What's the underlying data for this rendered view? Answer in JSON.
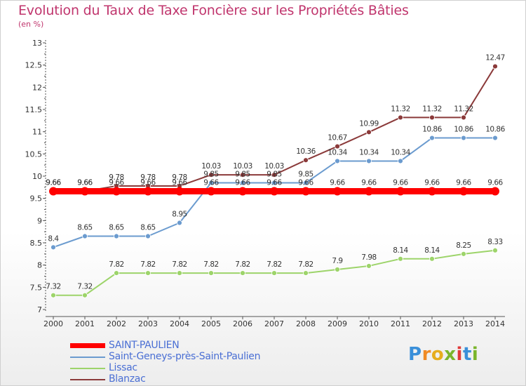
{
  "chart_data": {
    "type": "line",
    "title": "Evolution du Taux de Taxe Foncière sur les Propriétés Bâties",
    "subtitle": "(en %)",
    "xlabel": "",
    "ylabel": "(en %)",
    "ylim": [
      7,
      13
    ],
    "x": [
      "2000",
      "2001",
      "2002",
      "2003",
      "2004",
      "2005",
      "2006",
      "2007",
      "2008",
      "2009",
      "2010",
      "2011",
      "2012",
      "2013",
      "2014"
    ],
    "yticks": [
      "7",
      "7.5",
      "8",
      "8.5",
      "9",
      "9.5",
      "10",
      "10.5",
      "11",
      "11.5",
      "12",
      "12.5",
      "13"
    ],
    "series": [
      {
        "name": "SAINT-PAULIEN",
        "color": "#ff0000",
        "values": [
          9.66,
          9.66,
          9.66,
          9.66,
          9.66,
          9.66,
          9.66,
          9.66,
          9.66,
          9.66,
          9.66,
          9.66,
          9.66,
          9.66,
          9.66
        ],
        "labels": [
          "9.66",
          "9.66",
          "9.66",
          "9.66",
          "9.66",
          "9.66",
          "9.66",
          "9.66",
          "9.66",
          "9.66",
          "9.66",
          "9.66",
          "9.66",
          "9.66",
          "9.66"
        ]
      },
      {
        "name": "Saint-Geneys-près-Saint-Paulien",
        "color": "#6b9bcf",
        "values": [
          8.4,
          8.65,
          8.65,
          8.65,
          8.95,
          9.85,
          9.85,
          9.85,
          9.85,
          10.34,
          10.34,
          10.34,
          10.86,
          10.86,
          10.86
        ],
        "labels": [
          "8.4",
          "8.65",
          "8.65",
          "8.65",
          "8.95",
          "9.85",
          "9.85",
          "9.85",
          "9.85",
          "10.34",
          "10.34",
          "10.34",
          "10.86",
          "10.86",
          "10.86"
        ]
      },
      {
        "name": "Lissac",
        "color": "#9dd46a",
        "values": [
          7.32,
          7.32,
          7.82,
          7.82,
          7.82,
          7.82,
          7.82,
          7.82,
          7.82,
          7.9,
          7.98,
          8.14,
          8.14,
          8.25,
          8.33
        ],
        "labels": [
          "7.32",
          "7.32",
          "7.82",
          "7.82",
          "7.82",
          "7.82",
          "7.82",
          "7.82",
          "7.82",
          "7.9",
          "7.98",
          "8.14",
          "8.14",
          "8.25",
          "8.33"
        ]
      },
      {
        "name": "Blanzac",
        "color": "#8b3a3a",
        "values": [
          9.66,
          9.66,
          9.78,
          9.78,
          9.78,
          10.03,
          10.03,
          10.03,
          10.36,
          10.67,
          10.99,
          11.32,
          11.32,
          11.32,
          12.47
        ],
        "labels": [
          "9.66",
          "9.66",
          "9.78",
          "9.78",
          "9.78",
          "10.03",
          "10.03",
          "10.03",
          "10.36",
          "10.67",
          "10.99",
          "11.32",
          "11.32",
          "11.32",
          "12.47"
        ]
      }
    ],
    "legend_position": "bottom-left",
    "grid": false
  },
  "legend": [
    {
      "label": "SAINT-PAULIEN"
    },
    {
      "label": "Saint-Geneys-près-Saint-Paulien"
    },
    {
      "label": "Lissac"
    },
    {
      "label": "Blanzac"
    }
  ],
  "logo": {
    "text": "Proxiti"
  },
  "colors": {
    "title": "#c0356d",
    "legend_text": "#4a6fd4",
    "axis": "#555555"
  }
}
